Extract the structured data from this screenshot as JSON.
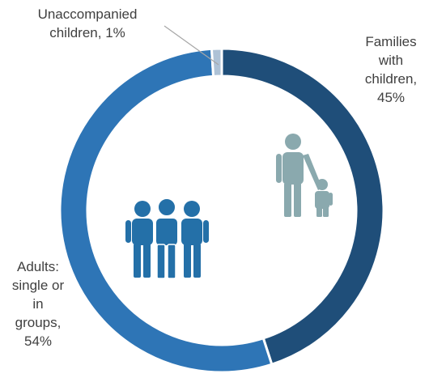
{
  "chart_data": {
    "type": "pie",
    "subtype": "donut",
    "title": "",
    "slices": [
      {
        "label": "Families with children",
        "value": 45,
        "display": "45%",
        "color": "#1f4e79"
      },
      {
        "label": "Adults: single or in groups",
        "value": 54,
        "display": "54%",
        "color": "#2e75b6"
      },
      {
        "label": "Unaccompanied children",
        "value": 1,
        "display": "1%",
        "color": "#aec2d6"
      }
    ],
    "data_labels": {
      "families": [
        "Families",
        "with",
        "children,",
        "45%"
      ],
      "adults": [
        "Adults:",
        "single or",
        "in",
        "groups,",
        "54%"
      ],
      "unaccompanied": [
        "Unaccompanied",
        "children, 1%"
      ]
    },
    "icons": {
      "adults": "group-of-three-adults-icon",
      "families": "parent-with-child-icon"
    },
    "legend": "none"
  }
}
